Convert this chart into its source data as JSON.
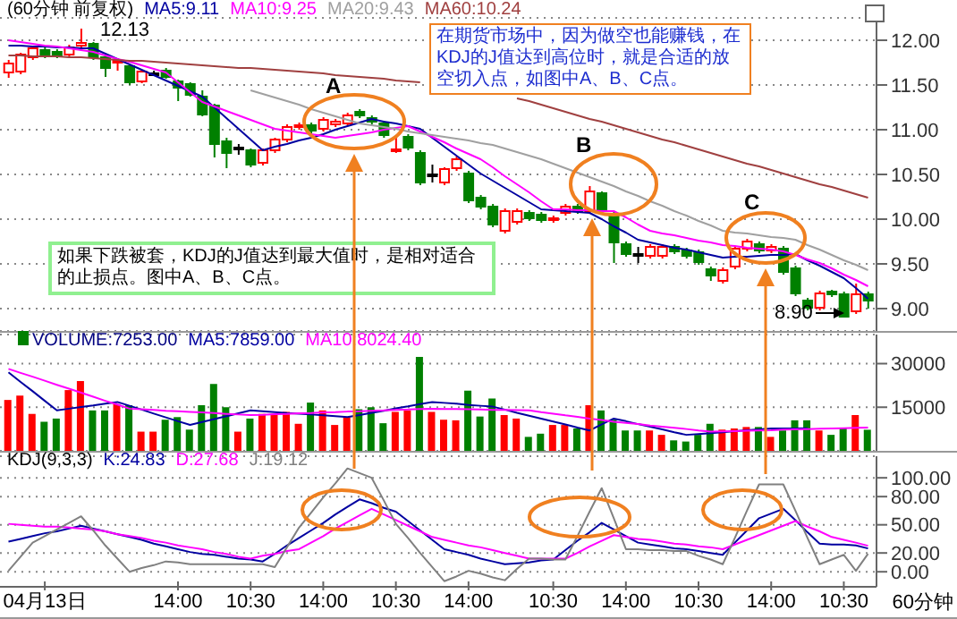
{
  "chart_data": [
    {
      "type": "candlestick",
      "title": "(60分钟 前复权)",
      "legend": "top left",
      "grid": "y",
      "tick_labels": "y",
      "ohlc": [
        [
          11.64,
          11.78,
          11.58,
          11.74
        ],
        [
          11.65,
          11.86,
          11.62,
          11.84
        ],
        [
          11.81,
          11.93,
          11.78,
          11.91
        ],
        [
          11.89,
          11.92,
          11.8,
          11.83
        ],
        [
          11.87,
          11.9,
          11.8,
          11.82
        ],
        [
          11.84,
          11.95,
          11.82,
          11.92
        ],
        [
          11.94,
          12.13,
          11.9,
          11.97
        ],
        [
          11.96,
          11.98,
          11.78,
          11.81
        ],
        [
          11.81,
          11.83,
          11.59,
          11.69
        ],
        [
          11.75,
          11.8,
          11.66,
          11.77
        ],
        [
          11.71,
          11.73,
          11.5,
          11.53
        ],
        [
          11.54,
          11.67,
          11.52,
          11.65
        ],
        [
          11.63,
          11.66,
          11.6,
          11.63
        ],
        [
          11.66,
          11.69,
          11.57,
          11.59
        ],
        [
          11.54,
          11.56,
          11.32,
          11.47
        ],
        [
          11.51,
          11.53,
          11.37,
          11.39
        ],
        [
          11.37,
          11.44,
          11.15,
          11.17
        ],
        [
          11.27,
          11.29,
          10.69,
          10.84
        ],
        [
          10.87,
          10.91,
          10.57,
          10.74
        ],
        [
          10.8,
          10.84,
          10.72,
          10.8
        ],
        [
          10.77,
          10.79,
          10.58,
          10.61
        ],
        [
          10.63,
          10.79,
          10.6,
          10.77
        ],
        [
          10.77,
          10.91,
          10.74,
          10.89
        ],
        [
          10.89,
          11.06,
          10.86,
          11.03
        ],
        [
          11.03,
          11.08,
          11.0,
          11.05
        ],
        [
          11.05,
          11.08,
          10.96,
          10.99
        ],
        [
          11.01,
          11.14,
          10.98,
          11.11
        ],
        [
          11.06,
          11.12,
          11.03,
          11.09
        ],
        [
          11.07,
          11.19,
          11.04,
          11.16
        ],
        [
          11.2,
          11.23,
          11.13,
          11.16
        ],
        [
          11.13,
          11.16,
          11.06,
          11.09
        ],
        [
          11.07,
          11.1,
          10.91,
          10.94
        ],
        [
          10.76,
          10.94,
          10.74,
          10.78
        ],
        [
          10.92,
          10.95,
          10.77,
          10.8
        ],
        [
          10.74,
          10.77,
          10.38,
          10.41
        ],
        [
          10.5,
          10.61,
          10.41,
          10.5
        ],
        [
          10.41,
          10.58,
          10.38,
          10.56
        ],
        [
          10.57,
          10.7,
          10.54,
          10.67
        ],
        [
          10.51,
          10.54,
          10.18,
          10.21
        ],
        [
          10.24,
          10.27,
          10.11,
          10.14
        ],
        [
          10.14,
          10.17,
          9.91,
          9.94
        ],
        [
          9.87,
          10.12,
          9.84,
          10.09
        ],
        [
          9.97,
          10.12,
          9.94,
          10.09
        ],
        [
          10.07,
          10.1,
          9.98,
          10.01
        ],
        [
          10.05,
          10.08,
          9.96,
          9.99
        ],
        [
          9.99,
          10.04,
          9.96,
          10.01
        ],
        [
          10.07,
          10.17,
          10.04,
          10.14
        ],
        [
          10.14,
          10.17,
          10.06,
          10.09
        ],
        [
          10.09,
          10.37,
          10.06,
          10.31
        ],
        [
          10.29,
          10.31,
          10.06,
          10.09
        ],
        [
          10.05,
          10.08,
          9.51,
          9.74
        ],
        [
          9.72,
          9.75,
          9.58,
          9.61
        ],
        [
          9.61,
          9.69,
          9.51,
          9.61
        ],
        [
          9.59,
          9.72,
          9.56,
          9.69
        ],
        [
          9.59,
          9.72,
          9.56,
          9.69
        ],
        [
          9.69,
          9.72,
          9.61,
          9.64
        ],
        [
          9.65,
          9.68,
          9.56,
          9.59
        ],
        [
          9.63,
          9.66,
          9.49,
          9.52
        ],
        [
          9.44,
          9.47,
          9.31,
          9.37
        ],
        [
          9.31,
          9.46,
          9.28,
          9.43
        ],
        [
          9.47,
          9.7,
          9.44,
          9.67
        ],
        [
          9.67,
          9.78,
          9.64,
          9.75
        ],
        [
          9.72,
          9.75,
          9.62,
          9.65
        ],
        [
          9.65,
          9.72,
          9.62,
          9.69
        ],
        [
          9.67,
          9.7,
          9.38,
          9.41
        ],
        [
          9.45,
          9.48,
          9.14,
          9.17
        ],
        [
          9.09,
          9.12,
          8.98,
          9.01
        ],
        [
          9.01,
          9.2,
          8.98,
          9.17
        ],
        [
          9.19,
          9.21,
          9.13,
          9.16
        ],
        [
          9.16,
          9.19,
          8.9,
          8.91
        ],
        [
          8.97,
          9.28,
          8.94,
          9.16
        ],
        [
          9.16,
          9.19,
          9.0,
          9.09
        ]
      ],
      "colors": [
        "#ff0000",
        "#ff0000",
        "#ff0000",
        "#008000",
        "#008000",
        "#ff0000",
        "#ff0000",
        "#008000",
        "#008000",
        "#ff0000",
        "#008000",
        "#ff0000",
        "#000000",
        "#008000",
        "#008000",
        "#008000",
        "#008000",
        "#008000",
        "#008000",
        "#000000",
        "#008000",
        "#ff0000",
        "#ff0000",
        "#ff0000",
        "#ff0000",
        "#008000",
        "#ff0000",
        "#ff0000",
        "#ff0000",
        "#008000",
        "#008000",
        "#008000",
        "#ff0000",
        "#008000",
        "#008000",
        "#000000",
        "#ff0000",
        "#ff0000",
        "#008000",
        "#008000",
        "#008000",
        "#ff0000",
        "#ff0000",
        "#008000",
        "#008000",
        "#ff0000",
        "#ff0000",
        "#008000",
        "#ff0000",
        "#008000",
        "#008000",
        "#008000",
        "#000000",
        "#ff0000",
        "#ff0000",
        "#008000",
        "#008000",
        "#008000",
        "#008000",
        "#ff0000",
        "#ff0000",
        "#ff0000",
        "#008000",
        "#ff0000",
        "#008000",
        "#008000",
        "#008000",
        "#ff0000",
        "#008000",
        "#008000",
        "#ff0000",
        "#008000"
      ],
      "series": [
        {
          "name": "MA5:9.11",
          "type": "line",
          "color": "#0000a0",
          "values": [
            11.94,
            11.94,
            11.93,
            11.93,
            11.92,
            11.92,
            11.91,
            11.91,
            11.85,
            11.79,
            11.73,
            11.67,
            11.61,
            11.55,
            11.49,
            11.43,
            11.37,
            11.25,
            11.13,
            11.01,
            10.89,
            10.77,
            10.81,
            10.84,
            10.88,
            10.91,
            10.95,
            11.0,
            11.04,
            11.08,
            11.12,
            11.09,
            11.07,
            11.04,
            11.01,
            10.91,
            10.81,
            10.71,
            10.61,
            10.51,
            10.43,
            10.35,
            10.27,
            10.19,
            10.11,
            10.1,
            10.09,
            10.08,
            10.07,
            10.0,
            9.92,
            9.85,
            9.77,
            9.74,
            9.71,
            9.68,
            9.66,
            9.63,
            9.6,
            9.57,
            9.58,
            9.58,
            9.59,
            9.6,
            9.6,
            9.61,
            9.54,
            9.48,
            9.41,
            9.34,
            9.23,
            9.11
          ]
        },
        {
          "name": "MA10:9.25",
          "type": "line",
          "color": "#ff00ff",
          "values": [
            12.0,
            11.98,
            11.96,
            11.94,
            11.93,
            11.91,
            11.89,
            11.87,
            11.83,
            11.79,
            11.76,
            11.72,
            11.68,
            11.64,
            11.53,
            11.42,
            11.31,
            11.26,
            11.21,
            11.16,
            11.11,
            11.06,
            11.01,
            10.99,
            10.97,
            10.95,
            10.93,
            10.91,
            10.93,
            10.95,
            10.97,
            11.0,
            11.02,
            11.04,
            10.98,
            10.92,
            10.86,
            10.79,
            10.73,
            10.67,
            10.58,
            10.48,
            10.39,
            10.3,
            10.2,
            10.11,
            10.11,
            10.1,
            10.1,
            10.09,
            10.09,
            10.02,
            9.94,
            9.87,
            9.84,
            9.82,
            9.79,
            9.76,
            9.74,
            9.71,
            9.7,
            9.68,
            9.67,
            9.66,
            9.64,
            9.6,
            9.55,
            9.51,
            9.45,
            9.38,
            9.32,
            9.25
          ]
        },
        {
          "name": "MA20:9.43",
          "type": "line",
          "color": "#a0a0a0",
          "values": [
            null,
            null,
            null,
            null,
            null,
            null,
            null,
            null,
            null,
            null,
            null,
            null,
            null,
            null,
            null,
            null,
            null,
            null,
            null,
            null,
            11.44,
            11.4,
            11.36,
            11.32,
            11.28,
            11.23,
            11.19,
            11.15,
            11.11,
            11.07,
            11.05,
            11.03,
            11.01,
            10.98,
            10.96,
            10.94,
            10.92,
            10.9,
            10.88,
            10.85,
            10.83,
            10.79,
            10.75,
            10.71,
            10.67,
            10.62,
            10.57,
            10.52,
            10.47,
            10.42,
            10.37,
            10.31,
            10.26,
            10.2,
            10.15,
            10.09,
            10.04,
            9.98,
            9.93,
            9.87,
            9.85,
            9.84,
            9.82,
            9.8,
            9.79,
            9.77,
            9.71,
            9.66,
            9.6,
            9.54,
            9.49,
            9.43
          ]
        },
        {
          "name": "MA60:10.24",
          "type": "line",
          "color": "#a04040",
          "values": [
            11.83,
            11.83,
            11.82,
            11.82,
            11.82,
            11.81,
            11.81,
            11.8,
            11.79,
            11.78,
            11.77,
            11.77,
            11.76,
            11.75,
            11.74,
            11.73,
            11.72,
            11.71,
            11.7,
            11.69,
            11.69,
            11.68,
            11.67,
            11.66,
            11.65,
            11.64,
            11.63,
            11.61,
            11.6,
            11.59,
            11.58,
            11.57,
            11.55,
            11.54,
            11.53,
            null,
            null,
            null,
            null,
            null,
            null,
            null,
            11.35,
            11.32,
            11.28,
            11.24,
            11.2,
            11.16,
            11.12,
            11.09,
            11.05,
            11.01,
            10.97,
            10.93,
            10.89,
            10.86,
            10.82,
            10.78,
            10.74,
            10.7,
            10.66,
            10.62,
            10.59,
            10.55,
            10.51,
            10.47,
            10.43,
            10.39,
            10.36,
            10.32,
            10.28,
            10.24
          ]
        }
      ],
      "ylim": [
        8.75,
        12.25
      ],
      "yticks": [
        {
          "value": 9,
          "label": "9.00"
        },
        {
          "value": 9.5,
          "label": "9.50"
        },
        {
          "value": 10,
          "label": "10.00"
        },
        {
          "value": 10.5,
          "label": "10.50"
        },
        {
          "value": 11,
          "label": "11.00"
        },
        {
          "value": 11.5,
          "label": "11.50"
        },
        {
          "value": 12,
          "label": "12.00"
        }
      ],
      "annotations": [
        "在期货市场中，因为做空也能赚钱，在KDJ的J值达到高位时，就是合适的放空切入点，如图中A、B、C点。",
        "如果下跌被套，KDJ的J值达到最大值时，是相对适合的止损点。图中A、B、C点。",
        "A",
        "B",
        "C",
        "12.13",
        "8.90"
      ]
    },
    {
      "type": "bar",
      "legend": "top left",
      "grid": "y",
      "tick_labels": "y",
      "series": [
        {
          "name": "VOLUME:7253.00",
          "values": [
            17500,
            19000,
            12700,
            10000,
            11100,
            20900,
            24000,
            13900,
            13900,
            16100,
            15700,
            6600,
            6600,
            10700,
            11600,
            7300,
            15700,
            23000,
            15000,
            6600,
            11100,
            12700,
            12700,
            13400,
            9300,
            16600,
            13900,
            8900,
            11600,
            14300,
            15000,
            9500,
            13400,
            13900,
            32300,
            13400,
            10700,
            10500,
            20700,
            11800,
            18000,
            12300,
            11100,
            4800,
            5900,
            8900,
            8900,
            7700,
            15700,
            13900,
            10700,
            7000,
            7000,
            7000,
            5500,
            3600,
            3200,
            5500,
            9300,
            7300,
            7700,
            8200,
            8200,
            4800,
            7000,
            10500,
            10500,
            7000,
            5500,
            7700,
            12300,
            7253
          ],
          "colors": [
            "#ff0000",
            "#ff0000",
            "#ff0000",
            "#008000",
            "#008000",
            "#ff0000",
            "#ff0000",
            "#008000",
            "#008000",
            "#ff0000",
            "#008000",
            "#ff0000",
            "#ff0000",
            "#008000",
            "#008000",
            "#008000",
            "#008000",
            "#008000",
            "#008000",
            "#ff0000",
            "#008000",
            "#ff0000",
            "#ff0000",
            "#ff0000",
            "#ff0000",
            "#008000",
            "#ff0000",
            "#ff0000",
            "#ff0000",
            "#008000",
            "#008000",
            "#008000",
            "#ff0000",
            "#ff0000",
            "#008000",
            "#ff0000",
            "#ff0000",
            "#ff0000",
            "#008000",
            "#008000",
            "#008000",
            "#ff0000",
            "#ff0000",
            "#008000",
            "#008000",
            "#ff0000",
            "#ff0000",
            "#008000",
            "#ff0000",
            "#008000",
            "#008000",
            "#008000",
            "#008000",
            "#ff0000",
            "#ff0000",
            "#008000",
            "#008000",
            "#008000",
            "#008000",
            "#ff0000",
            "#ff0000",
            "#ff0000",
            "#008000",
            "#ff0000",
            "#008000",
            "#008000",
            "#008000",
            "#ff0000",
            "#008000",
            "#008000",
            "#ff0000",
            "#008000"
          ]
        },
        {
          "name": "MA5:7859.00",
          "type": "line",
          "color": "#0000a0",
          "values": [
            27000,
            23700,
            20500,
            17200,
            13900,
            14500,
            15100,
            15600,
            16200,
            16800,
            15500,
            14200,
            12800,
            11500,
            10200,
            8900,
            9900,
            10900,
            11900,
            12900,
            13900,
            13600,
            13300,
            13000,
            12800,
            12500,
            12200,
            11900,
            11600,
            12300,
            13100,
            13800,
            14600,
            15300,
            16100,
            16800,
            16500,
            16200,
            15800,
            15500,
            15200,
            14200,
            13100,
            12100,
            11100,
            10100,
            9100,
            8000,
            7000,
            9100,
            11100,
            10200,
            9200,
            8300,
            7400,
            6400,
            5500,
            5800,
            6100,
            6400,
            6800,
            7100,
            7400,
            7700,
            7700,
            7700,
            7800,
            null,
            null,
            null,
            null,
            null
          ]
        },
        {
          "name": "MA10:8024.40",
          "type": "line",
          "color": "#ff00ff",
          "values": [
            28200,
            26800,
            25500,
            24100,
            22700,
            21400,
            20000,
            18600,
            17200,
            15900,
            14500,
            14300,
            14100,
            13800,
            13600,
            13400,
            13200,
            13000,
            12700,
            12500,
            12300,
            12400,
            12600,
            12700,
            12900,
            13000,
            13200,
            13300,
            13500,
            13600,
            13800,
            13900,
            14100,
            14200,
            14400,
            14500,
            14400,
            14400,
            14300,
            14200,
            14100,
            14100,
            14000,
            13900,
            13300,
            12800,
            12200,
            11700,
            11100,
            10600,
            10000,
            9600,
            9200,
            8700,
            8300,
            7900,
            7500,
            7000,
            6600,
            6700,
            6800,
            6900,
            7000,
            7100,
            7300,
            7400,
            7500,
            7600,
            7700,
            7800,
            7900,
            8024.4
          ]
        }
      ],
      "ylim": [
        0,
        40000
      ],
      "yticks": [
        15000,
        30000
      ]
    },
    {
      "type": "line",
      "title": "KDJ(9,3,3)",
      "legend": "top left",
      "grid": "y",
      "xlabel": "60分钟",
      "categories": [
        null,
        null,
        null,
        "04月13日",
        null,
        null,
        null,
        null,
        null,
        null,
        null,
        null,
        null,
        null,
        "14:00",
        null,
        null,
        null,
        null,
        null,
        "10:30",
        null,
        null,
        null,
        null,
        null,
        "14:00",
        null,
        null,
        null,
        null,
        null,
        "10:30",
        null,
        null,
        null,
        null,
        null,
        "14:00",
        null,
        null,
        null,
        null,
        null,
        null,
        "10:30",
        null,
        null,
        null,
        null,
        null,
        "14:00",
        null,
        null,
        null,
        null,
        null,
        "10:30",
        null,
        null,
        null,
        null,
        null,
        "14:00",
        null,
        null,
        null,
        null,
        null,
        "10:30",
        null,
        null
      ],
      "series": [
        {
          "name": "K:24.83",
          "color": "#0000a0",
          "values": [
            32,
            35,
            38,
            41,
            43,
            46,
            49,
            46,
            43,
            40,
            37,
            34,
            30,
            27,
            24,
            21,
            19,
            18,
            16,
            14,
            13,
            11,
            19,
            28,
            36,
            44,
            52,
            61,
            69,
            77,
            73,
            68,
            64,
            54,
            44,
            34,
            24,
            21,
            18,
            14,
            11,
            8,
            9,
            10,
            12,
            13,
            23,
            33,
            42,
            52,
            45,
            38,
            31,
            29,
            27,
            25,
            24,
            22,
            20,
            18,
            31,
            44,
            57,
            62,
            67,
            55,
            42,
            30,
            29,
            29,
            28,
            24.83
          ]
        },
        {
          "name": "D:27.68",
          "color": "#ff00ff",
          "values": [
            51,
            50,
            49,
            48,
            48,
            47,
            46,
            45,
            43,
            40,
            38,
            36,
            33,
            31,
            28,
            26,
            24,
            21,
            19,
            16,
            14,
            17,
            19,
            22,
            24,
            31,
            38,
            46,
            53,
            60,
            67,
            61,
            55,
            49,
            43,
            37,
            34,
            31,
            28,
            26,
            23,
            20,
            17,
            14,
            14,
            14,
            14,
            20,
            27,
            33,
            39,
            37,
            35,
            34,
            32,
            30,
            29,
            27,
            26,
            24,
            29,
            34,
            39,
            44,
            49,
            54,
            48,
            43,
            37,
            34,
            31,
            27.68
          ]
        },
        {
          "name": "J:19.12",
          "color": "#808080",
          "values": [
            1,
            16,
            31,
            38,
            45,
            52,
            59,
            44,
            28,
            14,
            0,
            4,
            7,
            11,
            10,
            8,
            8,
            8,
            8,
            8,
            8,
            8,
            5,
            26,
            47,
            63,
            79,
            94,
            110,
            105,
            100,
            76,
            51,
            36,
            20,
            5,
            -10,
            -5,
            1,
            -2,
            -6,
            -9,
            3,
            14,
            14,
            13,
            13,
            38,
            64,
            89,
            57,
            24,
            24,
            23,
            23,
            22,
            22,
            17,
            13,
            8,
            36,
            65,
            93,
            93,
            93,
            65,
            36,
            8,
            13,
            18,
            1,
            19.12
          ]
        }
      ],
      "ylim": [
        -16,
        123
      ],
      "yticks": [
        {
          "value": 0,
          "label": "0.00"
        },
        {
          "value": 20,
          "label": "20.00"
        },
        {
          "value": 50,
          "label": "50.00"
        },
        {
          "value": 80,
          "label": "80.00"
        },
        {
          "value": 100,
          "label": "100.00"
        }
      ]
    }
  ]
}
